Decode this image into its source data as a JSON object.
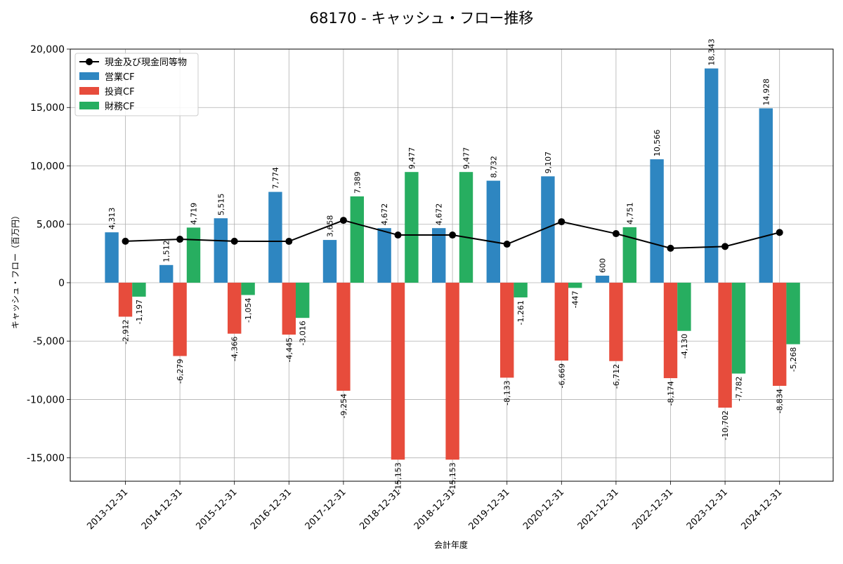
{
  "chart_data": {
    "type": "bar",
    "title": "68170 - キャッシュ・フロー推移",
    "xlabel": "会計年度",
    "ylabel": "キャッシュ・フロー（百万円）",
    "ylim": [
      -17000,
      20000
    ],
    "yticks": [
      -15000,
      -10000,
      -5000,
      0,
      5000,
      10000,
      15000,
      20000
    ],
    "ytick_labels": [
      "-15,000",
      "-10,000",
      "-5,000",
      "0",
      "5,000",
      "10,000",
      "15,000",
      "20,000"
    ],
    "grid": true,
    "legend_position": "top-left",
    "categories": [
      "2013-12-31",
      "2014-12-31",
      "2015-12-31",
      "2016-12-31",
      "2017-12-31",
      "2018-12-31",
      "2018-12-31",
      "2019-12-31",
      "2020-12-31",
      "2021-12-31",
      "2022-12-31",
      "2023-12-31",
      "2024-12-31"
    ],
    "series": [
      {
        "name": "営業CF",
        "kind": "bar",
        "color": "#2e86c1",
        "values": [
          4313,
          1512,
          5515,
          7774,
          3658,
          4672,
          4672,
          8732,
          9107,
          600,
          10566,
          18343,
          14928
        ],
        "labels": [
          "4,313",
          "1,512",
          "5,515",
          "7,774",
          "3,658",
          "4,672",
          "4,672",
          "8,732",
          "9,107",
          "600",
          "10,566",
          "18,343",
          "14,928"
        ]
      },
      {
        "name": "投資CF",
        "kind": "bar",
        "color": "#e74c3c",
        "values": [
          -2912,
          -6279,
          -4366,
          -4445,
          -9254,
          -15153,
          -15153,
          -8133,
          -6669,
          -6712,
          -8174,
          -10702,
          -8834
        ],
        "labels": [
          "-2,912",
          "-6,279",
          "-4,366",
          "-4,445",
          "-9,254",
          "-15,153",
          "-15,153",
          "-8,133",
          "-6,669",
          "-6,712",
          "-8,174",
          "-10,702",
          "-8,834"
        ]
      },
      {
        "name": "財務CF",
        "kind": "bar",
        "color": "#27ae60",
        "values": [
          -1197,
          4719,
          -1054,
          -3016,
          7389,
          9477,
          9477,
          -1261,
          -447,
          4751,
          -4130,
          -7782,
          -5268
        ],
        "labels": [
          "-1,197",
          "4,719",
          "-1,054",
          "-3,016",
          "7,389",
          "9,477",
          "9,477",
          "-1,261",
          "-447",
          "4,751",
          "-4,130",
          "-7,782",
          "-5,268"
        ]
      },
      {
        "name": "現金及び現金同等物",
        "kind": "line",
        "color": "#000000",
        "values": [
          3550,
          3720,
          3550,
          3540,
          5340,
          4080,
          4080,
          3300,
          5220,
          4200,
          2950,
          3100,
          4300
        ]
      }
    ],
    "legend": [
      "現金及び現金同等物",
      "営業CF",
      "投資CF",
      "財務CF"
    ]
  }
}
